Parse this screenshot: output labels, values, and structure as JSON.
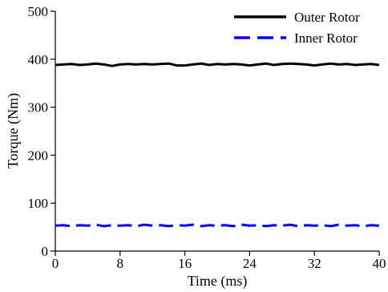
{
  "chart_data": {
    "type": "line",
    "title": "",
    "xlabel": "Time (ms)",
    "ylabel": "Torque (Nm)",
    "xlim": [
      0,
      40
    ],
    "ylim": [
      0,
      500
    ],
    "x_ticks": [
      0,
      8,
      16,
      24,
      32,
      40
    ],
    "x_tick_labels": [
      "0",
      "8",
      "16",
      "24",
      "32",
      "40"
    ],
    "y_ticks": [
      0,
      100,
      200,
      300,
      400,
      500
    ],
    "y_tick_labels": [
      "0",
      "100",
      "200",
      "300",
      "400",
      "500"
    ],
    "grid": false,
    "legend_position": "top-right",
    "x": [
      0,
      1,
      2,
      3,
      4,
      5,
      6,
      7,
      8,
      9,
      10,
      11,
      12,
      13,
      14,
      15,
      16,
      17,
      18,
      19,
      20,
      21,
      22,
      23,
      24,
      25,
      26,
      27,
      28,
      29,
      30,
      31,
      32,
      33,
      34,
      35,
      36,
      37,
      38,
      39,
      40
    ],
    "series": [
      {
        "name": "Outer Rotor",
        "color": "#000000",
        "style": "solid",
        "values": [
          388,
          389,
          390,
          388,
          389,
          391,
          389,
          386,
          389,
          390,
          389,
          390,
          389,
          390,
          391,
          387,
          387,
          389,
          391,
          388,
          390,
          389,
          390,
          389,
          387,
          389,
          391,
          388,
          390,
          391,
          390,
          389,
          387,
          389,
          391,
          389,
          390,
          388,
          389,
          390,
          388
        ]
      },
      {
        "name": "Inner Rotor",
        "color": "#0000ff",
        "style": "dashed",
        "values": [
          53,
          54,
          52,
          54,
          53,
          55,
          52,
          54,
          53,
          54,
          52,
          55,
          53,
          54,
          52,
          54,
          53,
          55,
          52,
          54,
          53,
          54,
          52,
          55,
          53,
          54,
          52,
          54,
          53,
          55,
          52,
          54,
          53,
          54,
          52,
          55,
          53,
          54,
          52,
          54,
          53
        ]
      }
    ]
  }
}
